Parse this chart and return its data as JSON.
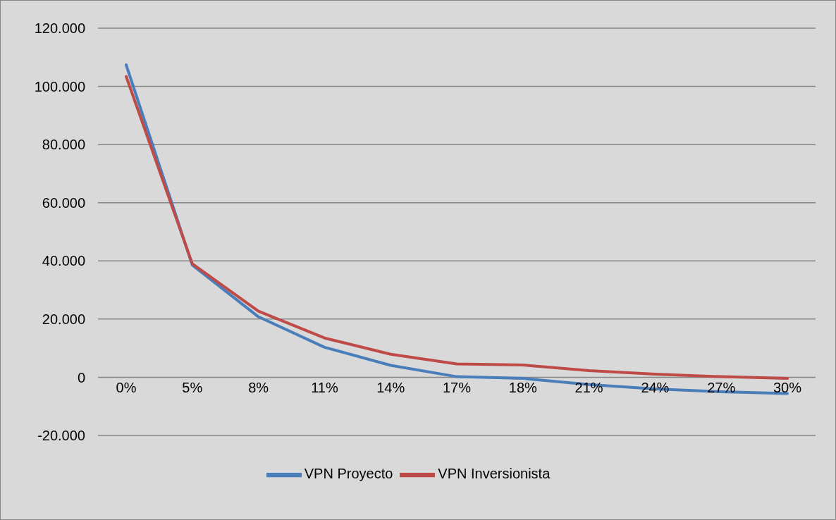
{
  "chart_data": {
    "type": "line",
    "categories": [
      "0%",
      "5%",
      "8%",
      "11%",
      "14%",
      "17%",
      "18%",
      "21%",
      "24%",
      "27%",
      "30%"
    ],
    "series": [
      {
        "name": "VPN Proyecto",
        "color": "#4a7ebb",
        "values": [
          107400,
          38600,
          20800,
          10300,
          4100,
          200,
          -400,
          -2500,
          -4000,
          -5000,
          -5600
        ]
      },
      {
        "name": "VPN Inversionista",
        "color": "#be4b48",
        "values": [
          103400,
          39000,
          22700,
          13500,
          7900,
          4600,
          4200,
          2300,
          1100,
          200,
          -400
        ]
      }
    ],
    "ylim": [
      -20000,
      120000
    ],
    "yticks": [
      {
        "value": -20000,
        "label": "-20.000"
      },
      {
        "value": 0,
        "label": "0"
      },
      {
        "value": 20000,
        "label": "20.000"
      },
      {
        "value": 40000,
        "label": "40.000"
      },
      {
        "value": 60000,
        "label": "60.000"
      },
      {
        "value": 80000,
        "label": "80.000"
      },
      {
        "value": 100000,
        "label": "100.000"
      },
      {
        "value": 120000,
        "label": "120.000"
      }
    ],
    "grid": "y",
    "legend": "bottom",
    "marker": "none",
    "line_style": "solid"
  }
}
